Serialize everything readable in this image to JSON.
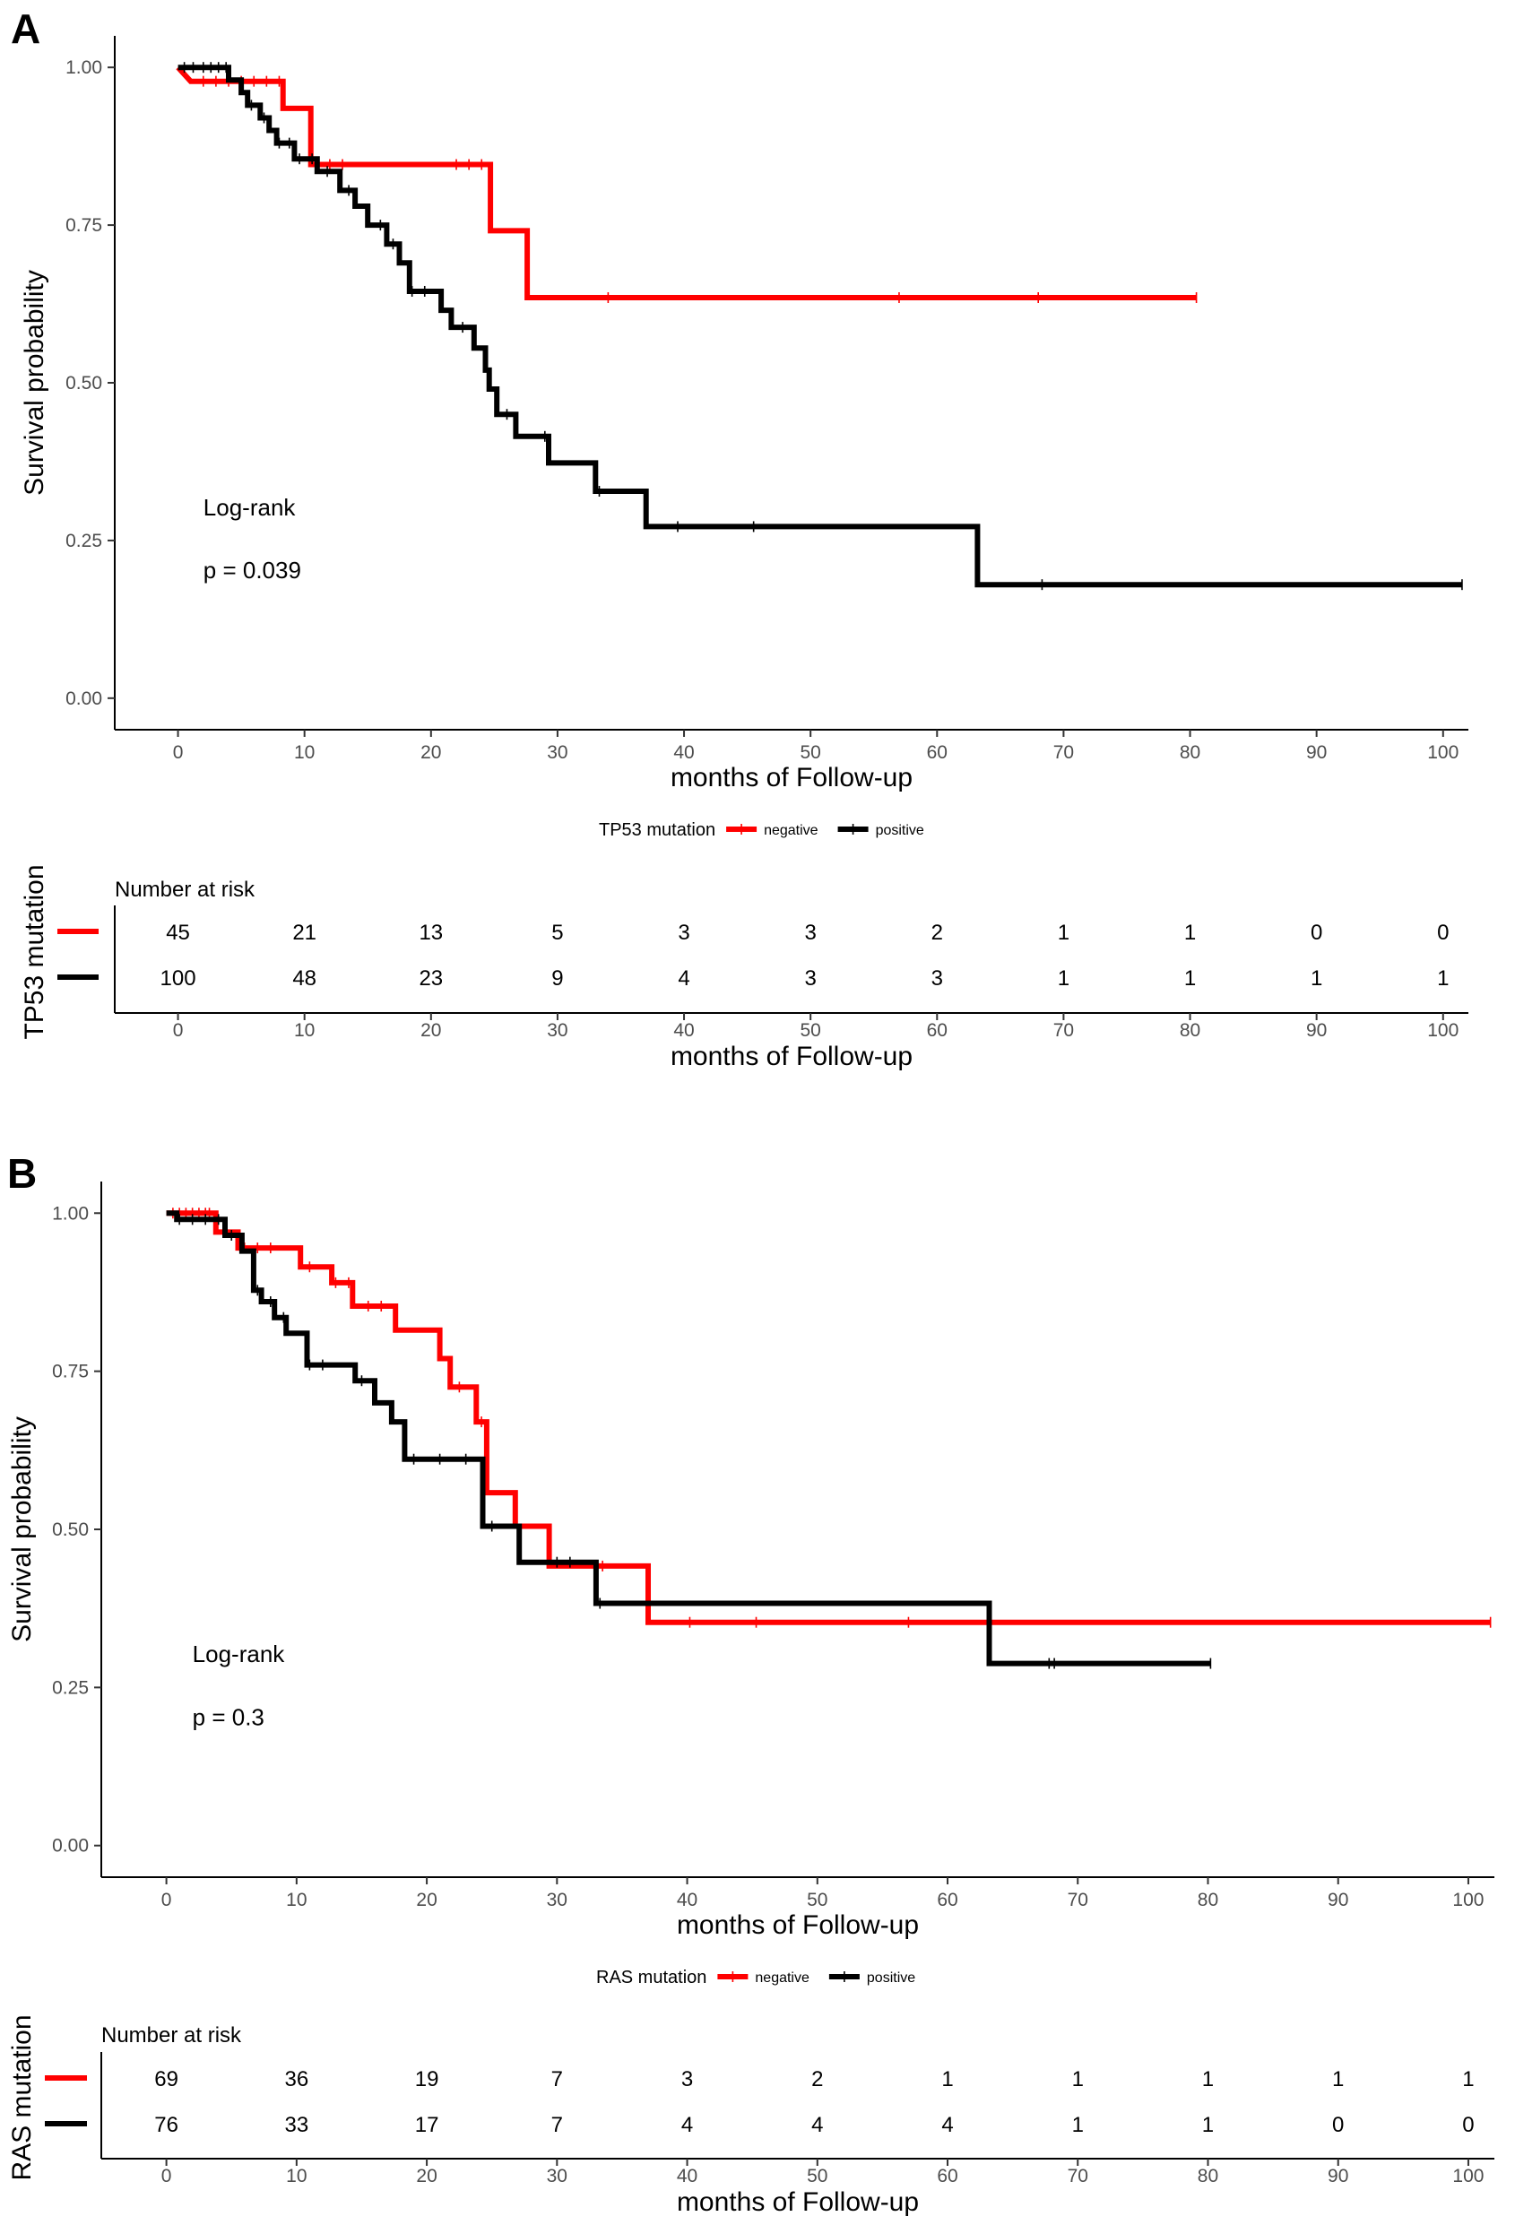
{
  "chart_data": [
    {
      "panel": "A",
      "type": "line",
      "title": "",
      "xlabel": "months of Follow-up",
      "ylabel": "Survival probability",
      "xlim": [
        -5,
        102
      ],
      "ylim": [
        -0.05,
        1.05
      ],
      "xticks": [
        "0",
        "10",
        "20",
        "30",
        "40",
        "50",
        "60",
        "70",
        "80",
        "90",
        "100"
      ],
      "yticks": [
        "0.00",
        "0.25",
        "0.50",
        "0.75",
        "1.00"
      ],
      "annotation": {
        "test": "Log-rank",
        "pvalue": "p = 0.039"
      },
      "legend": {
        "title": "TP53 mutation",
        "entries": [
          "negative",
          "positive"
        ]
      },
      "series": [
        {
          "name": "negative",
          "color": "#ff0000",
          "steps": [
            [
              0,
              1.0
            ],
            [
              1,
              0.978
            ],
            [
              8.3,
              0.978
            ],
            [
              8.3,
              0.935
            ],
            [
              10.5,
              0.935
            ],
            [
              10.5,
              0.846
            ],
            [
              24.7,
              0.846
            ],
            [
              24.7,
              0.741
            ],
            [
              27.6,
              0.741
            ],
            [
              27.6,
              0.635
            ],
            [
              80.5,
              0.635
            ]
          ],
          "censor": [
            2,
            3,
            4,
            5,
            6,
            7,
            8,
            11,
            12,
            13,
            22,
            23,
            24,
            34,
            57,
            68,
            80.5
          ]
        },
        {
          "name": "positive",
          "color": "#000000",
          "steps": [
            [
              0,
              1.0
            ],
            [
              4,
              1.0
            ],
            [
              4,
              0.98
            ],
            [
              5,
              0.98
            ],
            [
              5,
              0.96
            ],
            [
              5.5,
              0.96
            ],
            [
              5.5,
              0.94
            ],
            [
              6.5,
              0.94
            ],
            [
              6.5,
              0.92
            ],
            [
              7.2,
              0.92
            ],
            [
              7.2,
              0.9
            ],
            [
              7.8,
              0.9
            ],
            [
              7.8,
              0.88
            ],
            [
              9.2,
              0.88
            ],
            [
              9.2,
              0.855
            ],
            [
              11,
              0.855
            ],
            [
              11,
              0.835
            ],
            [
              12.8,
              0.835
            ],
            [
              12.8,
              0.805
            ],
            [
              14,
              0.805
            ],
            [
              14,
              0.78
            ],
            [
              15,
              0.78
            ],
            [
              15,
              0.75
            ],
            [
              16.5,
              0.75
            ],
            [
              16.5,
              0.72
            ],
            [
              17.5,
              0.72
            ],
            [
              17.5,
              0.69
            ],
            [
              18.3,
              0.69
            ],
            [
              18.3,
              0.645
            ],
            [
              20.8,
              0.645
            ],
            [
              20.8,
              0.615
            ],
            [
              21.6,
              0.615
            ],
            [
              21.6,
              0.588
            ],
            [
              23.4,
              0.588
            ],
            [
              23.4,
              0.555
            ],
            [
              24.3,
              0.555
            ],
            [
              24.3,
              0.52
            ],
            [
              24.6,
              0.52
            ],
            [
              24.6,
              0.49
            ],
            [
              25.2,
              0.49
            ],
            [
              25.2,
              0.45
            ],
            [
              26.7,
              0.45
            ],
            [
              26.7,
              0.415
            ],
            [
              29.3,
              0.415
            ],
            [
              29.3,
              0.373
            ],
            [
              33,
              0.373
            ],
            [
              33,
              0.328
            ],
            [
              37,
              0.328
            ],
            [
              37,
              0.272
            ],
            [
              63.2,
              0.272
            ],
            [
              63.2,
              0.18
            ],
            [
              101.5,
              0.18
            ]
          ],
          "censor": [
            0.5,
            1.2,
            2,
            2.6,
            3.2,
            3.8,
            5.8,
            6.8,
            8,
            8.8,
            9.6,
            10.6,
            11.8,
            13.5,
            16,
            17,
            18.5,
            19.5,
            22.5,
            26,
            29,
            33.3,
            39.5,
            45.5,
            68.3,
            101.5
          ]
        }
      ],
      "risk_table": {
        "title": "Number at risk",
        "group_label": "TP53 mutation",
        "times": [
          "0",
          "10",
          "20",
          "30",
          "40",
          "50",
          "60",
          "70",
          "80",
          "90",
          "100"
        ],
        "rows": [
          {
            "name": "negative",
            "color": "#ff0000",
            "counts": [
              "45",
              "21",
              "13",
              "5",
              "3",
              "3",
              "2",
              "1",
              "1",
              "0",
              "0"
            ]
          },
          {
            "name": "positive",
            "color": "#000000",
            "counts": [
              "100",
              "48",
              "23",
              "9",
              "4",
              "3",
              "3",
              "1",
              "1",
              "1",
              "1"
            ]
          }
        ],
        "xlabel": "months of Follow-up"
      }
    },
    {
      "panel": "B",
      "type": "line",
      "title": "",
      "xlabel": "months of Follow-up",
      "ylabel": "Survival probability",
      "xlim": [
        -5,
        102
      ],
      "ylim": [
        -0.05,
        1.05
      ],
      "xticks": [
        "0",
        "10",
        "20",
        "30",
        "40",
        "50",
        "60",
        "70",
        "80",
        "90",
        "100"
      ],
      "yticks": [
        "0.00",
        "0.25",
        "0.50",
        "0.75",
        "1.00"
      ],
      "annotation": {
        "test": "Log-rank",
        "pvalue": "p = 0.3"
      },
      "legend": {
        "title": "RAS mutation",
        "entries": [
          "negative",
          "positive"
        ]
      },
      "series": [
        {
          "name": "negative",
          "color": "#ff0000",
          "steps": [
            [
              0,
              1.0
            ],
            [
              3.8,
              1.0
            ],
            [
              3.8,
              0.97
            ],
            [
              5.5,
              0.97
            ],
            [
              5.5,
              0.945
            ],
            [
              10.3,
              0.945
            ],
            [
              10.3,
              0.915
            ],
            [
              12.7,
              0.915
            ],
            [
              12.7,
              0.89
            ],
            [
              14.3,
              0.89
            ],
            [
              14.3,
              0.853
            ],
            [
              17.6,
              0.853
            ],
            [
              17.6,
              0.815
            ],
            [
              21,
              0.815
            ],
            [
              21,
              0.77
            ],
            [
              21.8,
              0.77
            ],
            [
              21.8,
              0.725
            ],
            [
              23.8,
              0.725
            ],
            [
              23.8,
              0.67
            ],
            [
              24.6,
              0.67
            ],
            [
              24.6,
              0.558
            ],
            [
              26.8,
              0.558
            ],
            [
              26.8,
              0.505
            ],
            [
              29.4,
              0.505
            ],
            [
              29.4,
              0.442
            ],
            [
              37,
              0.442
            ],
            [
              37,
              0.353
            ],
            [
              101.7,
              0.353
            ]
          ],
          "censor": [
            0.5,
            1,
            1.5,
            2,
            2.5,
            3,
            3.3,
            6,
            7,
            8,
            11,
            13,
            14,
            15.5,
            16.5,
            22.5,
            24.2,
            33.5,
            40.2,
            45.3,
            57,
            101.7
          ]
        },
        {
          "name": "positive",
          "color": "#000000",
          "steps": [
            [
              0,
              1.0
            ],
            [
              0.8,
              1.0
            ],
            [
              0.8,
              0.99
            ],
            [
              4.5,
              0.99
            ],
            [
              4.5,
              0.965
            ],
            [
              5.8,
              0.965
            ],
            [
              5.8,
              0.94
            ],
            [
              6.7,
              0.94
            ],
            [
              6.7,
              0.878
            ],
            [
              7.3,
              0.878
            ],
            [
              7.3,
              0.86
            ],
            [
              8.3,
              0.86
            ],
            [
              8.3,
              0.835
            ],
            [
              9.2,
              0.835
            ],
            [
              9.2,
              0.81
            ],
            [
              10.8,
              0.81
            ],
            [
              10.8,
              0.76
            ],
            [
              14.5,
              0.76
            ],
            [
              14.5,
              0.735
            ],
            [
              16,
              0.735
            ],
            [
              16,
              0.7
            ],
            [
              17.3,
              0.7
            ],
            [
              17.3,
              0.67
            ],
            [
              18.3,
              0.67
            ],
            [
              18.3,
              0.611
            ],
            [
              24.3,
              0.611
            ],
            [
              24.3,
              0.505
            ],
            [
              27.1,
              0.505
            ],
            [
              27.1,
              0.448
            ],
            [
              33,
              0.448
            ],
            [
              33,
              0.383
            ],
            [
              63.2,
              0.383
            ],
            [
              63.2,
              0.288
            ],
            [
              80.2,
              0.288
            ]
          ],
          "censor": [
            1,
            2,
            3,
            4,
            5,
            7,
            8,
            9,
            11,
            12,
            15,
            19,
            21,
            23,
            25,
            30,
            31,
            33.3,
            67.8,
            68.2,
            80.2
          ]
        }
      ],
      "risk_table": {
        "title": "Number at risk",
        "group_label": "RAS mutation",
        "times": [
          "0",
          "10",
          "20",
          "30",
          "40",
          "50",
          "60",
          "70",
          "80",
          "90",
          "100"
        ],
        "rows": [
          {
            "name": "negative",
            "color": "#ff0000",
            "counts": [
              "69",
              "36",
              "19",
              "7",
              "3",
              "2",
              "1",
              "1",
              "1",
              "1",
              "1"
            ]
          },
          {
            "name": "positive",
            "color": "#000000",
            "counts": [
              "76",
              "33",
              "17",
              "7",
              "4",
              "4",
              "4",
              "1",
              "1",
              "0",
              "0"
            ]
          }
        ],
        "xlabel": "months of Follow-up"
      }
    }
  ]
}
